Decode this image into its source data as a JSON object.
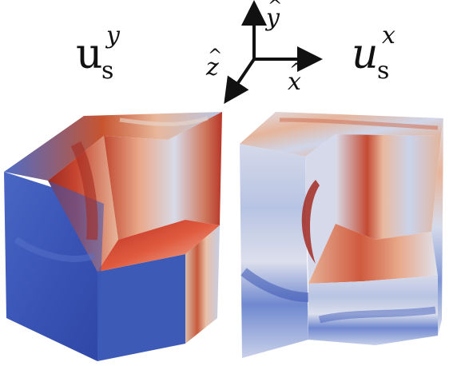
{
  "labels": {
    "left": {
      "base": "u",
      "sub": "s",
      "sup": "y",
      "style": "upright"
    },
    "right": {
      "base": "u",
      "sub": "s",
      "sup": "x",
      "style": "italic"
    }
  },
  "axes": {
    "y": "y",
    "z": "z",
    "x": "x",
    "hat": "^"
  },
  "colors": {
    "cool": "#3a56b8",
    "neutral": "#d7dcec",
    "warm": "#c0322a"
  }
}
